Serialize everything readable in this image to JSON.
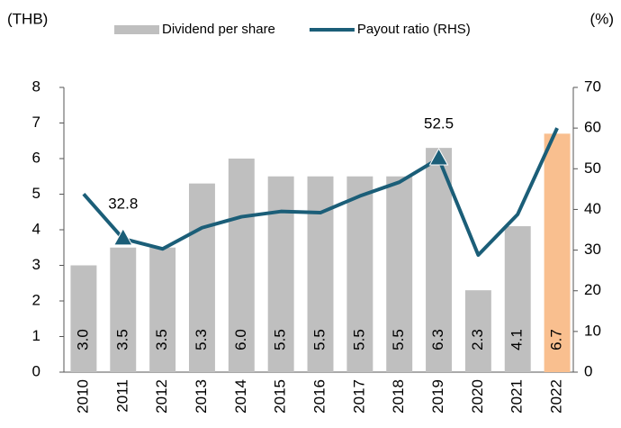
{
  "chart_data": {
    "type": "bar-line",
    "y_label": "(THB)",
    "y2_label": "(%)",
    "categories": [
      "2010",
      "2011",
      "2012",
      "2013",
      "2014",
      "2015",
      "2016",
      "2017",
      "2018",
      "2019",
      "2020",
      "2021",
      "2022"
    ],
    "series": [
      {
        "name": "Dividend per share",
        "type": "bar",
        "color": "#bfbfbf",
        "colors": [
          "#bfbfbf",
          "#bfbfbf",
          "#bfbfbf",
          "#bfbfbf",
          "#bfbfbf",
          "#bfbfbf",
          "#bfbfbf",
          "#bfbfbf",
          "#bfbfbf",
          "#bfbfbf",
          "#bfbfbf",
          "#bfbfbf",
          "#f9bf8f"
        ],
        "values": [
          3.0,
          3.5,
          3.5,
          5.3,
          6.0,
          5.5,
          5.5,
          5.5,
          5.5,
          6.3,
          2.3,
          4.1,
          6.7
        ],
        "value_labels": [
          "3.0",
          "3.5",
          "3.5",
          "5.3",
          "6.0",
          "5.5",
          "5.5",
          "5.5",
          "5.5",
          "6.3",
          "2.3",
          "4.1",
          "6.7"
        ]
      },
      {
        "name": "Payout ratio (RHS)",
        "type": "line",
        "axis": "y2",
        "color": "#1b5e78",
        "values": [
          43.8,
          32.8,
          30.3,
          35.5,
          38.2,
          39.5,
          39.2,
          43.3,
          46.7,
          52.5,
          28.8,
          38.8,
          60.0
        ],
        "value_labels": [
          null,
          "32.8",
          null,
          null,
          null,
          null,
          null,
          null,
          null,
          "52.5",
          null,
          null,
          null
        ]
      }
    ],
    "ylim": [
      0,
      8
    ],
    "yticks": [
      0,
      1,
      2,
      3,
      4,
      5,
      6,
      7,
      8
    ],
    "y2lim": [
      0,
      70
    ],
    "y2ticks": [
      0,
      10,
      20,
      30,
      40,
      50,
      60,
      70
    ],
    "legend": "top"
  }
}
